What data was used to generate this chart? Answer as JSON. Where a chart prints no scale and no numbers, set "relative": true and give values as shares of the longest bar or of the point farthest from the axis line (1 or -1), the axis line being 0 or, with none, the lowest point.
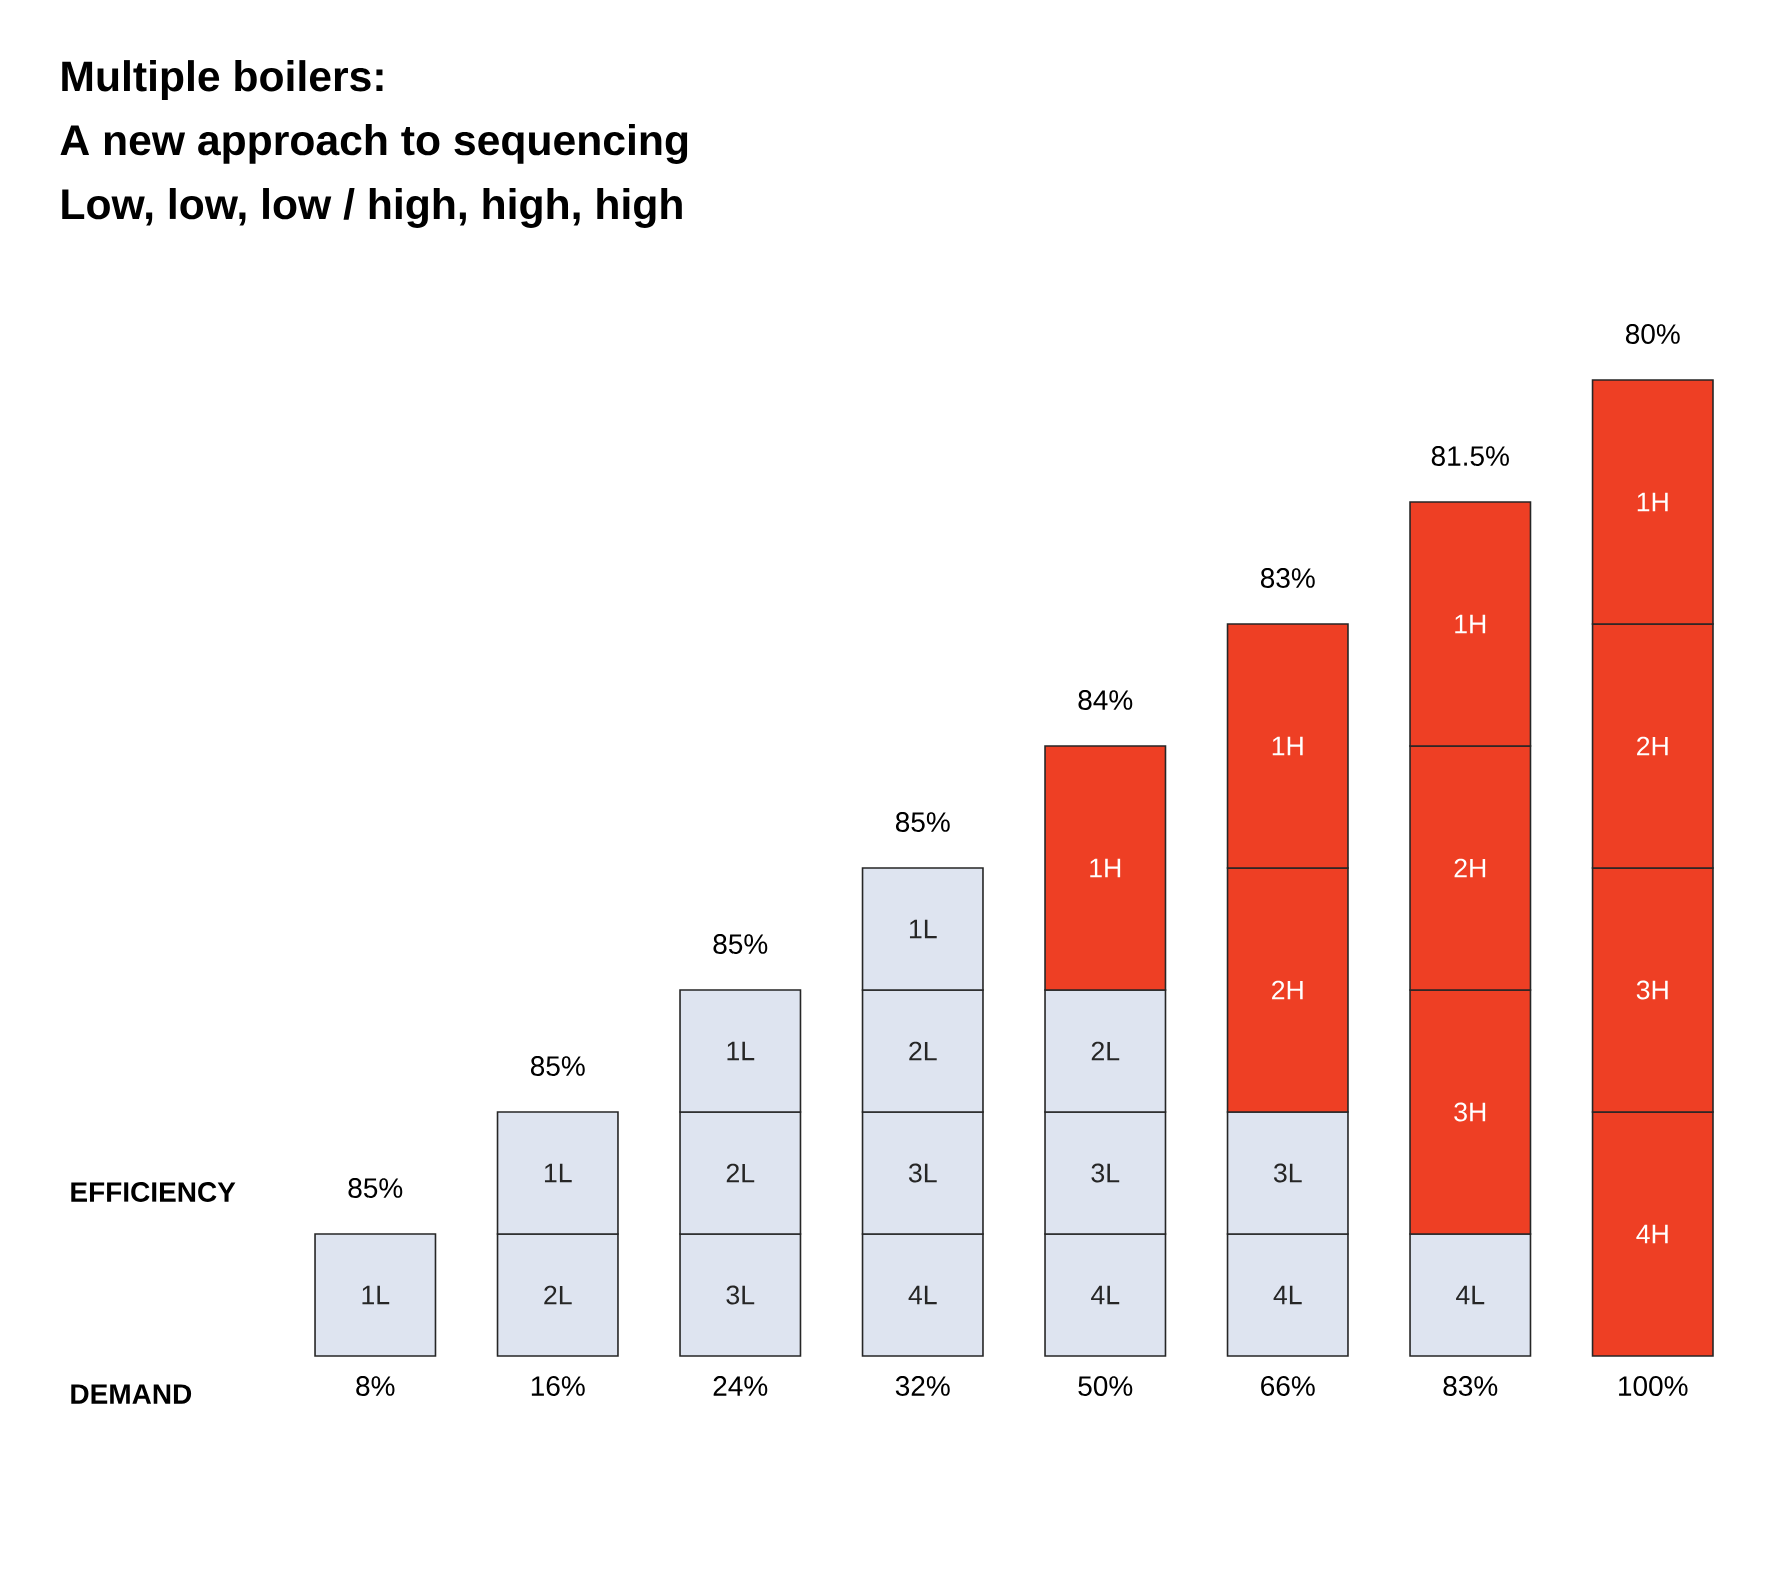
{
  "chart_data": {
    "type": "bar",
    "stacked": true,
    "relative": true,
    "title": "Multiple boilers:",
    "subtitle": "A new approach to sequencing",
    "xlabel": "DEMAND",
    "categories": [
      "8%",
      "16%",
      "24%",
      "32%",
      "50%",
      "66%",
      "83%",
      "100%"
    ],
    "series": [
      {
        "name": "4L",
        "color": "#dee4f0",
        "values": [
          null,
          null,
          null,
          0.125,
          0.125,
          0.125,
          0.125,
          null
        ]
      },
      {
        "name": "3L",
        "color": "#dee4f0",
        "values": [
          null,
          null,
          0.125,
          0.125,
          0.125,
          0.125,
          null,
          null
        ]
      },
      {
        "name": "2L",
        "color": "#dee4f0",
        "values": [
          null,
          0.125,
          0.125,
          0.125,
          0.125,
          null,
          null,
          null
        ]
      },
      {
        "name": "1L",
        "color": "#dee4f0",
        "values": [
          0.125,
          0.125,
          0.125,
          0.125,
          null,
          null,
          null,
          null
        ]
      },
      {
        "name": "4H",
        "color": "#ee3f24",
        "values": [
          null,
          null,
          null,
          null,
          null,
          null,
          null,
          0.25
        ]
      },
      {
        "name": "3H",
        "color": "#ee3f24",
        "values": [
          null,
          null,
          null,
          null,
          null,
          null,
          0.25,
          0.25
        ]
      },
      {
        "name": "2H",
        "color": "#ee3f24",
        "values": [
          null,
          null,
          null,
          null,
          null,
          0.25,
          0.25,
          0.25
        ]
      },
      {
        "name": "1H",
        "color": "#ee3f24",
        "values": [
          null,
          null,
          null,
          null,
          0.25,
          0.25,
          0.25,
          0.25
        ]
      }
    ],
    "annotations": [
      "Low, low, low / high, high, high",
      "EFFICIENCY",
      {
        "text": "85%",
        "x": "8%",
        "y": 0.125
      },
      {
        "text": "85%",
        "x": "16%",
        "y": 0.25
      },
      {
        "text": "85%",
        "x": "24%",
        "y": 0.375
      },
      {
        "text": "85%",
        "x": "32%",
        "y": 0.5
      },
      {
        "text": "84%",
        "x": "50%",
        "y": 0.625
      },
      {
        "text": "83%",
        "x": "66%",
        "y": 0.75
      },
      {
        "text": "81.5%",
        "x": "83%",
        "y": 0.875
      },
      {
        "text": "80%",
        "x": "100%",
        "y": 1
      }
    ]
  }
}
